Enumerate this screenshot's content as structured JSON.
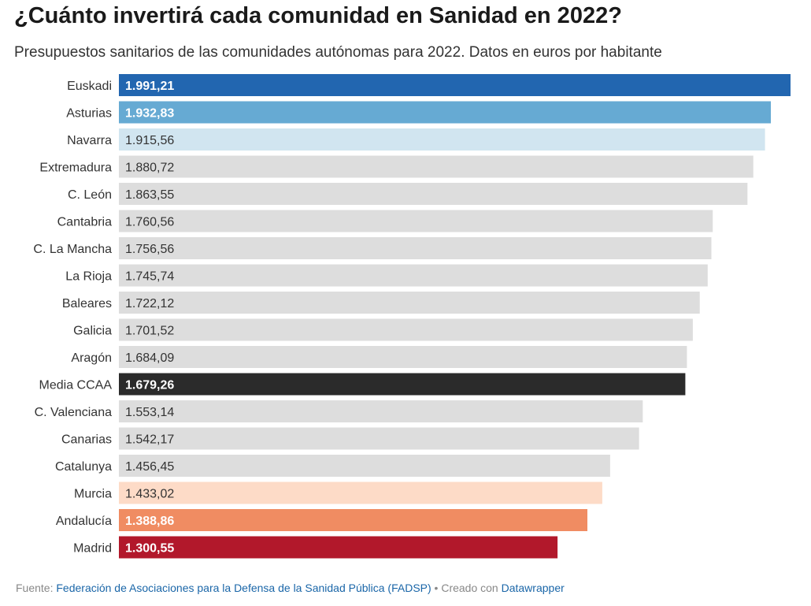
{
  "title": "¿Cuánto invertirá cada comunidad en Sanidad en 2022?",
  "subtitle": "Presupuestos sanitarios de las comunidades autónomas para 2022. Datos en euros por habitante",
  "footer": {
    "source_label": "Fuente: ",
    "source_text": "Federación de Asociaciones para la Defensa de la Sanidad Pública (FADSP)",
    "separator": " • Creado con ",
    "tool_text": "Datawrapper"
  },
  "chart_data": {
    "type": "bar",
    "orientation": "horizontal",
    "title": "¿Cuánto invertirá cada comunidad en Sanidad en 2022?",
    "subtitle": "Presupuestos sanitarios de las comunidades autónomas para 2022. Datos en euros por habitante",
    "categories": [
      "Euskadi",
      "Asturias",
      "Navarra",
      "Extremadura",
      "C. León",
      "Cantabria",
      "C. La Mancha",
      "La Rioja",
      "Baleares",
      "Galicia",
      "Aragón",
      "Media CCAA",
      "C. Valenciana",
      "Canarias",
      "Catalunya",
      "Murcia",
      "Andalucía",
      "Madrid"
    ],
    "values": [
      1991.21,
      1932.83,
      1915.56,
      1880.72,
      1863.55,
      1760.56,
      1756.56,
      1745.74,
      1722.12,
      1701.52,
      1684.09,
      1679.26,
      1553.14,
      1542.17,
      1456.45,
      1433.02,
      1388.86,
      1300.55
    ],
    "value_labels": [
      "1.991,21",
      "1.932,83",
      "1.915,56",
      "1.880,72",
      "1.863,55",
      "1.760,56",
      "1.756,56",
      "1.745,74",
      "1.722,12",
      "1.701,52",
      "1.684,09",
      "1.679,26",
      "1.553,14",
      "1.542,17",
      "1.456,45",
      "1.433,02",
      "1.388,86",
      "1.300,55"
    ],
    "colors": [
      "#2266b0",
      "#66aad3",
      "#d1e5f0",
      "#dddddd",
      "#dddddd",
      "#dddddd",
      "#dddddd",
      "#dddddd",
      "#dddddd",
      "#dddddd",
      "#dddddd",
      "#2b2b2b",
      "#dddddd",
      "#dddddd",
      "#dddddd",
      "#fddbc7",
      "#f08c62",
      "#b2182b"
    ],
    "label_colors": [
      "#ffffff",
      "#ffffff",
      "#333333",
      "#333333",
      "#333333",
      "#333333",
      "#333333",
      "#333333",
      "#333333",
      "#333333",
      "#333333",
      "#ffffff",
      "#333333",
      "#333333",
      "#333333",
      "#333333",
      "#ffffff",
      "#ffffff"
    ],
    "xlim": [
      0,
      1991.21
    ],
    "grid": false,
    "legend": "none"
  }
}
